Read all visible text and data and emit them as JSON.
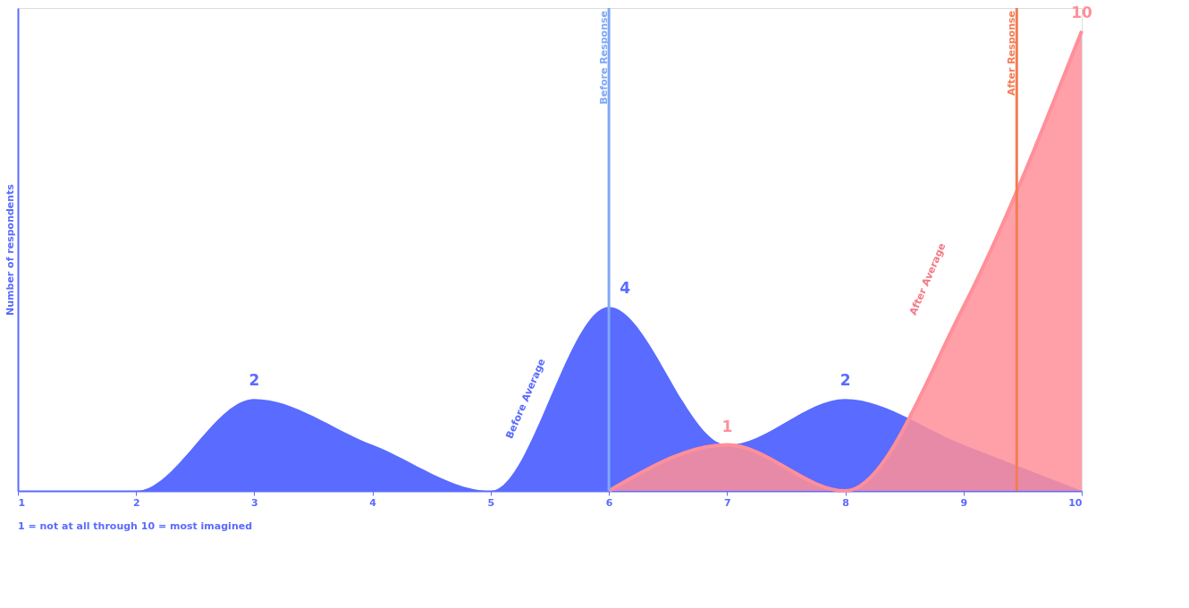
{
  "chart_data": {
    "type": "area",
    "xlabel": null,
    "ylabel": "Number of respondents",
    "x": [
      1,
      2,
      3,
      4,
      5,
      6,
      7,
      8,
      9,
      10
    ],
    "xlim": [
      1,
      10
    ],
    "xticks": [
      1,
      2,
      3,
      4,
      5,
      6,
      7,
      8,
      9,
      10
    ],
    "ylim": [
      0,
      10.5
    ],
    "tick_labels": "x",
    "grid": false,
    "series": [
      {
        "color": "#5a6bff",
        "values": [
          0,
          0,
          2,
          1,
          0,
          4,
          1,
          2,
          1,
          0
        ],
        "value_labels": [
          null,
          null,
          "2",
          null,
          null,
          "4",
          null,
          "2",
          null,
          null
        ]
      },
      {
        "color": "#ff8f99",
        "values": [
          null,
          null,
          null,
          null,
          null,
          0,
          1,
          0,
          4,
          10
        ],
        "value_labels": [
          null,
          null,
          null,
          null,
          null,
          null,
          "1",
          null,
          null,
          "10"
        ]
      }
    ],
    "ref_lines": [
      {
        "axis": "x",
        "value": 6,
        "label": "Before Response",
        "color": "#7fa8f5"
      },
      {
        "axis": "x",
        "value": 9.45,
        "label": "After Response",
        "color": "#f47c54"
      }
    ],
    "annotations": [
      "Before Average",
      "After Average",
      "1 = not at all through 10 = most imagined"
    ]
  }
}
